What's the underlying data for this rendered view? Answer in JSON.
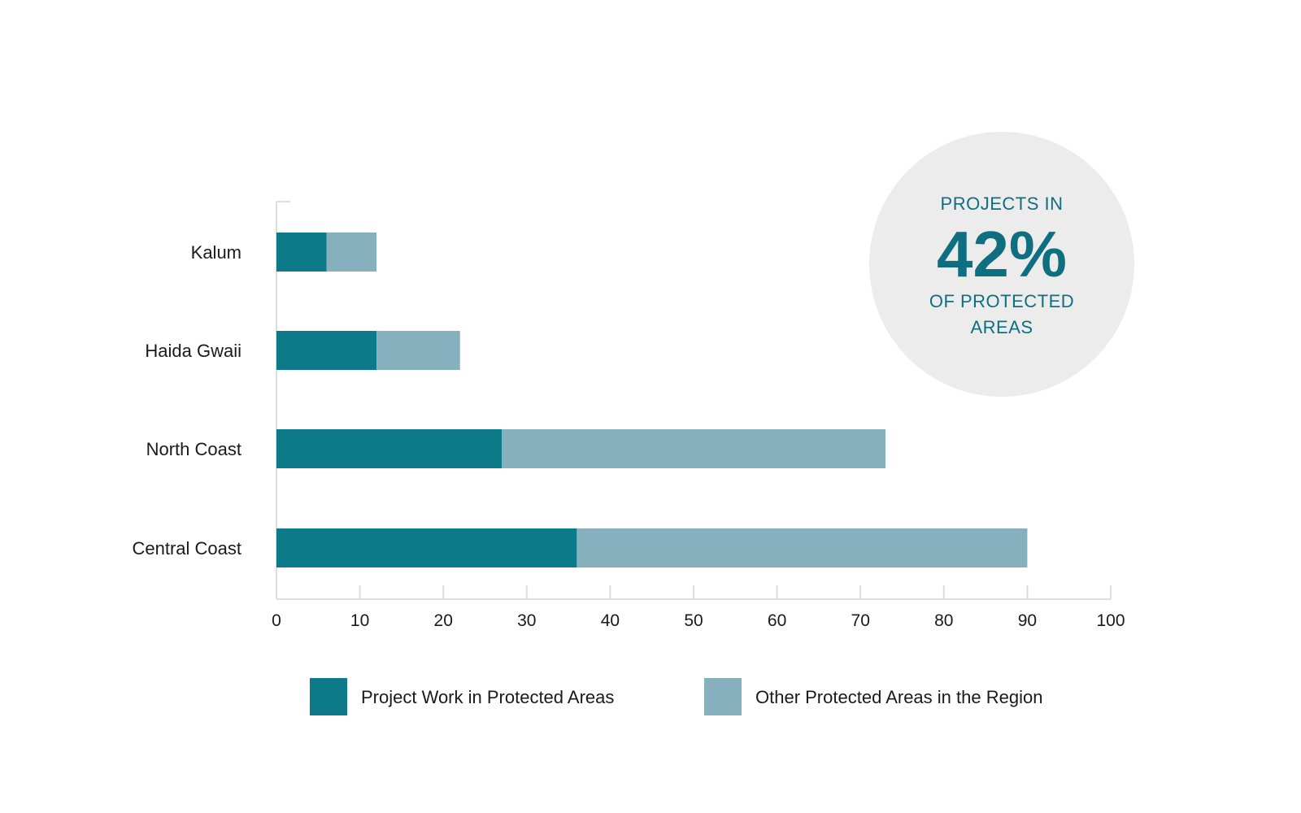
{
  "chart_data": {
    "type": "bar",
    "orientation": "horizontal",
    "stacked": true,
    "categories": [
      "Kalum",
      "Haida Gwaii",
      "North Coast",
      "Central Coast"
    ],
    "series": [
      {
        "name": "Project Work in Protected Areas",
        "values": [
          6,
          12,
          27,
          36
        ],
        "color": "#0d7a8a"
      },
      {
        "name": "Other Protected Areas in the Region",
        "values": [
          6,
          10,
          46,
          54
        ],
        "color": "#86b0bd"
      }
    ],
    "xlim": [
      0,
      100
    ],
    "xticks": [
      0,
      10,
      20,
      30,
      40,
      50,
      60,
      70,
      80,
      90,
      100
    ],
    "grid": false,
    "legend_position": "bottom"
  },
  "badge": {
    "line1": "PROJECTS IN",
    "value": "42%",
    "line2": "OF PROTECTED",
    "line3": "AREAS",
    "color": "#0f6f80",
    "background": "#ececec"
  }
}
